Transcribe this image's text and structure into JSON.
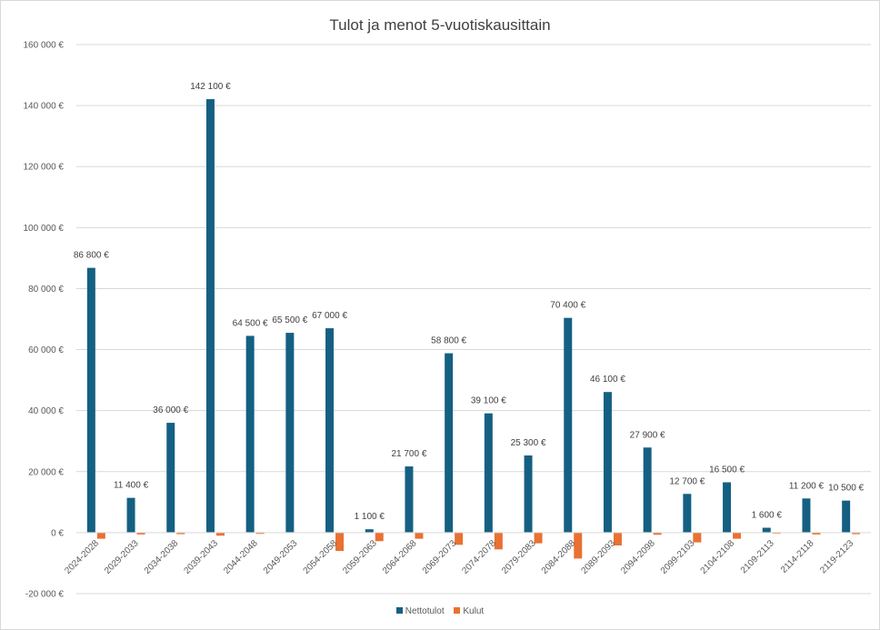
{
  "chart_data": {
    "type": "bar",
    "title": "Tulot ja menot 5-vuotiskausittain",
    "categories": [
      "2024-2028",
      "2029-2033",
      "2034-2038",
      "2039-2043",
      "2044-2048",
      "2049-2053",
      "2054-2058",
      "2059-2063",
      "2064-2068",
      "2069-2073",
      "2074-2078",
      "2079-2083",
      "2084-2088",
      "2089-2093",
      "2094-2098",
      "2099-2103",
      "2104-2108",
      "2109-2113",
      "2114-2118",
      "2119-2123"
    ],
    "series": [
      {
        "name": "Nettotulot",
        "color": "#156082",
        "values": [
          86800,
          11400,
          36000,
          142100,
          64500,
          65500,
          67000,
          1100,
          21700,
          58800,
          39100,
          25300,
          70400,
          46100,
          27900,
          12700,
          16500,
          1600,
          11200,
          10500
        ],
        "labels": [
          "86 800 €",
          "11 400 €",
          "36 000 €",
          "142 100 €",
          "64 500 €",
          "65 500 €",
          "67 000 €",
          "1 100 €",
          "21 700 €",
          "58 800 €",
          "39 100 €",
          "25 300 €",
          "70 400 €",
          "46 100 €",
          "27 900 €",
          "12 700 €",
          "16 500 €",
          "1 600 €",
          "11 200 €",
          "10 500 €"
        ]
      },
      {
        "name": "Kulut",
        "color": "#E97132",
        "values": [
          -2000,
          -600,
          -500,
          -1000,
          -400,
          0,
          -6000,
          -2800,
          -2000,
          -4000,
          -5500,
          -3500,
          -8500,
          -4200,
          -700,
          -3200,
          -2000,
          -300,
          -600,
          -500
        ]
      }
    ],
    "ylim": [
      -20000,
      160000
    ],
    "yticks": [
      -20000,
      0,
      20000,
      40000,
      60000,
      80000,
      100000,
      120000,
      140000,
      160000
    ],
    "ytick_labels": [
      "-20 000 €",
      "0 €",
      "20 000 €",
      "40 000 €",
      "60 000 €",
      "80 000 €",
      "100 000 €",
      "120 000 €",
      "140 000 €",
      "160 000 €"
    ],
    "grid": true,
    "legend_position": "bottom"
  }
}
